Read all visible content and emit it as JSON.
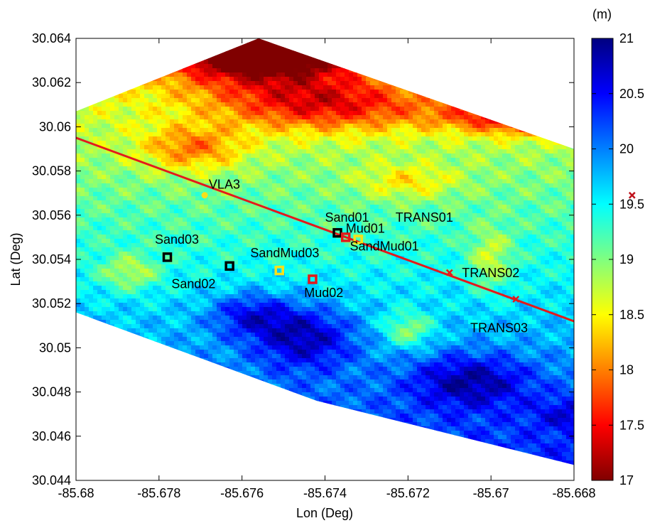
{
  "chart_data": {
    "type": "heatmap",
    "xlabel": "Lon (Deg)",
    "ylabel": "Lat (Deg)",
    "xlim": [
      -85.68,
      -85.668
    ],
    "ylim": [
      30.044,
      30.064
    ],
    "xticks": [
      -85.68,
      -85.678,
      -85.676,
      -85.674,
      -85.672,
      -85.67,
      -85.668
    ],
    "yticks": [
      30.044,
      30.046,
      30.048,
      30.05,
      30.052,
      30.054,
      30.056,
      30.058,
      30.06,
      30.062,
      30.064
    ],
    "xtick_labels": [
      "-85.68",
      "-85.678",
      "-85.676",
      "-85.674",
      "-85.672",
      "-85.67",
      "-85.668"
    ],
    "ytick_labels": [
      "30.044",
      "30.046",
      "30.048",
      "30.05",
      "30.052",
      "30.054",
      "30.056",
      "30.058",
      "30.06",
      "30.062",
      "30.064"
    ],
    "grid": false,
    "colorbar": {
      "unit_label": "(m)",
      "colormap": "jet-reversed",
      "range": [
        17,
        21
      ],
      "ticks": [
        17,
        17.5,
        18,
        18.5,
        19,
        19.5,
        20,
        20.5,
        21
      ],
      "tick_labels": [
        "17",
        "17.5",
        "18",
        "18.5",
        "19",
        "19.5",
        "20",
        "20.5",
        "21"
      ]
    },
    "coverage_polygon": [
      [
        -85.68,
        30.0607
      ],
      [
        -85.6756,
        30.064
      ],
      [
        -85.668,
        30.059
      ],
      [
        -85.668,
        30.0447
      ],
      [
        -85.6742,
        30.0476
      ],
      [
        -85.68,
        30.0516
      ]
    ],
    "track_line": {
      "color": "#e31a1c",
      "from": [
        -85.68,
        30.0595
      ],
      "to": [
        -85.668,
        30.0512
      ]
    },
    "stations": [
      {
        "name": "VLA3",
        "lon": -85.6769,
        "lat": 30.0569,
        "color": "#f7e11a",
        "symbol": "dot"
      },
      {
        "name": "Sand01",
        "lon": -85.6737,
        "lat": 30.0552,
        "color": "#000000",
        "symbol": "ring"
      },
      {
        "name": "Mud01",
        "lon": -85.6735,
        "lat": 30.055,
        "color": "#e31a1c",
        "symbol": "ring"
      },
      {
        "name": "SandMud01",
        "lon": -85.6732,
        "lat": 30.0549,
        "color": "#f7e11a",
        "symbol": "ring"
      },
      {
        "name": "Sand03",
        "lon": -85.6778,
        "lat": 30.0541,
        "color": "#000000",
        "symbol": "ring"
      },
      {
        "name": "Sand02",
        "lon": -85.6763,
        "lat": 30.0537,
        "color": "#000000",
        "symbol": "ring"
      },
      {
        "name": "SandMud03",
        "lon": -85.6751,
        "lat": 30.0535,
        "color": "#f7e11a",
        "symbol": "ring"
      },
      {
        "name": "Mud02",
        "lon": -85.6743,
        "lat": 30.0531,
        "color": "#e31a1c",
        "symbol": "ring"
      },
      {
        "name": "TRANS01",
        "lon": -85.6666,
        "lat": 30.0569,
        "color": "#c0121c",
        "symbol": "cross"
      },
      {
        "name": "TRANS02",
        "lon": -85.671,
        "lat": 30.0534,
        "color": "#e31a1c",
        "symbol": "cross"
      },
      {
        "name": "TRANS03",
        "lon": -85.6694,
        "lat": 30.0522,
        "color": "#e31a1c",
        "symbol": "cross"
      }
    ],
    "station_labels": [
      {
        "text": "VLA3",
        "lon": -85.6768,
        "lat": 30.0572
      },
      {
        "text": "Sand01",
        "lon": -85.674,
        "lat": 30.0557
      },
      {
        "text": "TRANS01",
        "lon": -85.6723,
        "lat": 30.0557
      },
      {
        "text": "Mud01",
        "lon": -85.6735,
        "lat": 30.0552
      },
      {
        "text": "Sand03",
        "lon": -85.6781,
        "lat": 30.0547
      },
      {
        "text": "SandMud01",
        "lon": -85.6734,
        "lat": 30.0544
      },
      {
        "text": "SandMud03",
        "lon": -85.6758,
        "lat": 30.0541
      },
      {
        "text": "TRANS02",
        "lon": -85.6707,
        "lat": 30.0532
      },
      {
        "text": "Sand02",
        "lon": -85.6777,
        "lat": 30.0527
      },
      {
        "text": "Mud02",
        "lon": -85.6745,
        "lat": 30.0523
      },
      {
        "text": "TRANS03",
        "lon": -85.6705,
        "lat": 30.0507
      }
    ],
    "depth_field": {
      "base": 19.4,
      "lon_gradient": 0,
      "lat_gradient": -110,
      "lat_center": 30.054,
      "features": [
        {
          "lon": -85.6755,
          "lat": 30.064,
          "amp": -3.3,
          "sl": 0.0022,
          "sa": 0.0017
        },
        {
          "lon": -85.669,
          "lat": 30.0605,
          "amp": -1.6,
          "sl": 0.002,
          "sa": 0.0008
        },
        {
          "lon": -85.674,
          "lat": 30.061,
          "amp": -1.2,
          "sl": 0.0025,
          "sa": 0.0012
        },
        {
          "lon": -85.6772,
          "lat": 30.059,
          "amp": -0.9,
          "sl": 0.0012,
          "sa": 0.001
        },
        {
          "lon": -85.672,
          "lat": 30.0575,
          "amp": -0.6,
          "sl": 0.0012,
          "sa": 0.0008
        },
        {
          "lon": -85.6745,
          "lat": 30.0505,
          "amp": 1.0,
          "sl": 0.0012,
          "sa": 0.0014
        },
        {
          "lon": -85.6758,
          "lat": 30.0515,
          "amp": 0.8,
          "sl": 0.001,
          "sa": 0.001
        },
        {
          "lon": -85.6705,
          "lat": 30.0485,
          "amp": 0.9,
          "sl": 0.0014,
          "sa": 0.0012
        },
        {
          "lon": -85.672,
          "lat": 30.0508,
          "amp": -0.8,
          "sl": 0.0006,
          "sa": 0.0008
        },
        {
          "lon": -85.67,
          "lat": 30.054,
          "amp": -0.7,
          "sl": 0.0005,
          "sa": 0.0014
        },
        {
          "lon": -85.6787,
          "lat": 30.0534,
          "amp": -0.7,
          "sl": 0.0007,
          "sa": 0.0008
        },
        {
          "lon": -85.668,
          "lat": 30.047,
          "amp": 0.5,
          "sl": 0.001,
          "sa": 0.0008
        }
      ]
    }
  }
}
